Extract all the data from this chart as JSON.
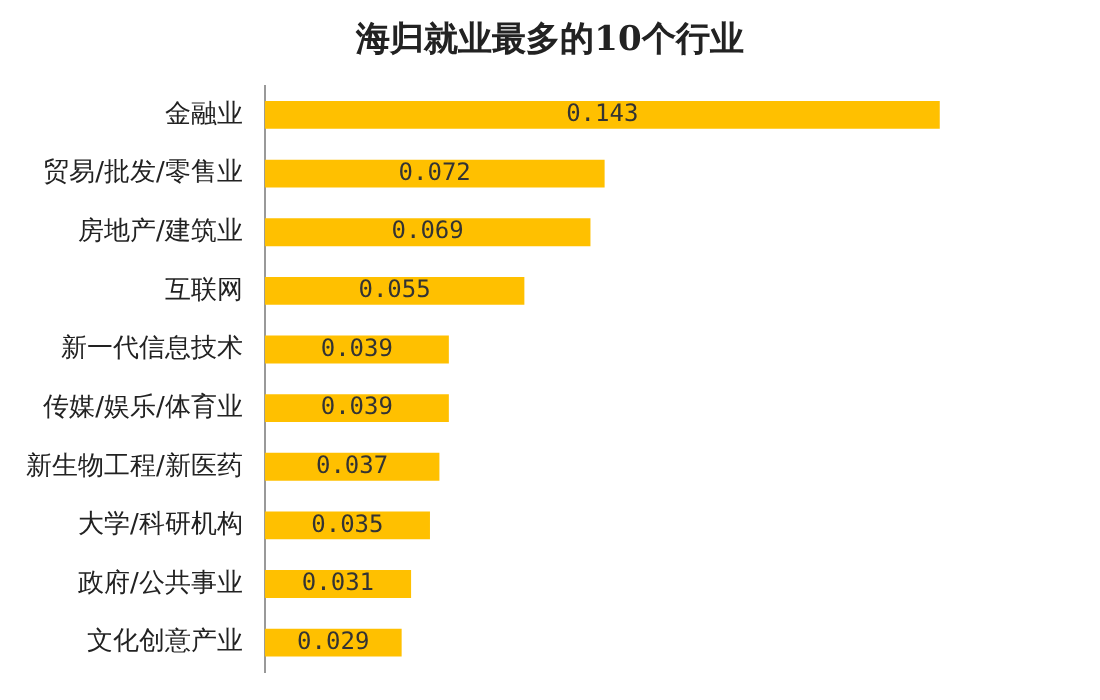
{
  "chart_data": {
    "type": "bar",
    "orientation": "horizontal",
    "title": "海归就业最多的10个行业",
    "categories": [
      "金融业",
      "贸易/批发/零售业",
      "房地产/建筑业",
      "互联网",
      "新一代信息技术",
      "传媒/娱乐/体育业",
      "新生物工程/新医药",
      "大学/科研机构",
      "政府/公共事业",
      "文化创意产业"
    ],
    "values": [
      0.143,
      0.072,
      0.069,
      0.055,
      0.039,
      0.039,
      0.037,
      0.035,
      0.031,
      0.029
    ],
    "color": "#ffc000",
    "data_labels": true,
    "grid": false,
    "legend": false,
    "tick_labels": "y"
  }
}
